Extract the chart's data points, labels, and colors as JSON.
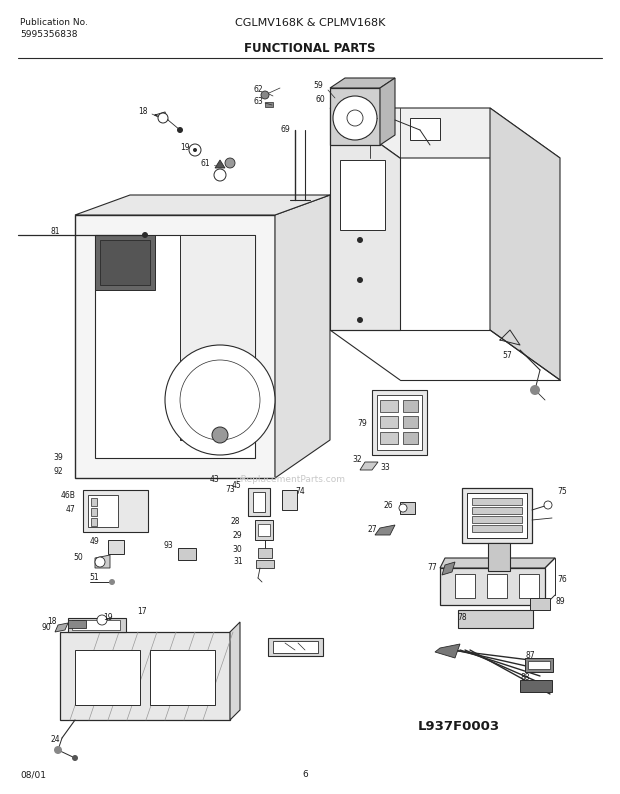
{
  "title_center": "CGLMV168K & CPLMV168K",
  "title_section": "FUNCTIONAL PARTS",
  "pub_label": "Publication No.",
  "pub_number": "5995356838",
  "diagram_id": "L937F0003",
  "date": "08/01",
  "page": "6",
  "bg_color": "#ffffff",
  "line_color": "#2a2a2a",
  "text_color": "#1a1a1a",
  "watermark": "eReplacementParts.com",
  "watermark_color": "#c8c8c8"
}
